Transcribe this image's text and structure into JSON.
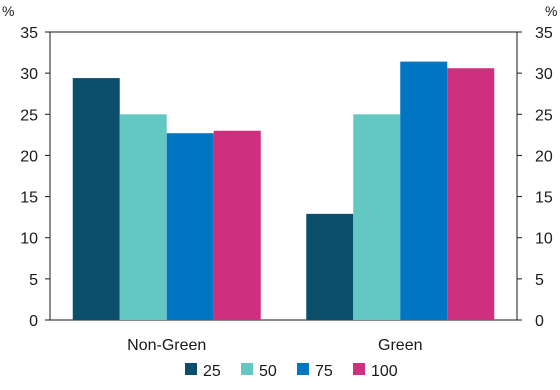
{
  "chart_data": {
    "type": "bar",
    "y_unit_left": "%",
    "y_unit_right": "%",
    "categories": [
      "Non-Green",
      "Green"
    ],
    "series": [
      {
        "name": "25",
        "color": "#0b4f6c",
        "values": [
          29.4,
          12.9
        ]
      },
      {
        "name": "50",
        "color": "#63c8c2",
        "values": [
          25.0,
          25.0
        ]
      },
      {
        "name": "75",
        "color": "#0075c2",
        "values": [
          22.7,
          31.4
        ]
      },
      {
        "name": "100",
        "color": "#cf2f7f",
        "values": [
          23.0,
          30.6
        ]
      }
    ],
    "ylim": [
      0,
      35
    ],
    "yticks": [
      0,
      5,
      10,
      15,
      20,
      25,
      30,
      35
    ],
    "grid": false,
    "legend_position": "bottom"
  }
}
